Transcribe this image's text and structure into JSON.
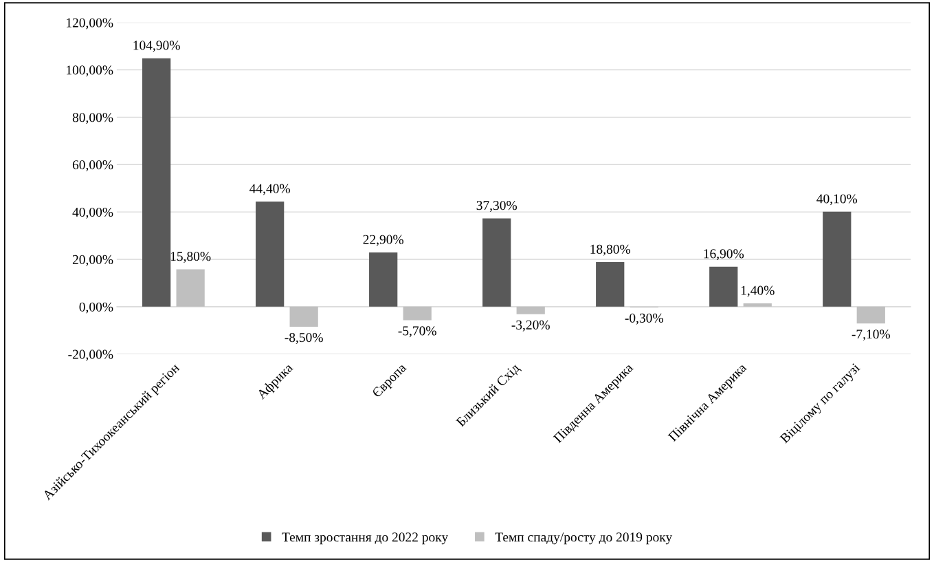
{
  "chart_data": {
    "type": "bar",
    "categories": [
      "Азійсько-Тихоокеанський регіон",
      "Африка",
      "Європа",
      "Близький Схід",
      "Південна Америка",
      "Північна Америка",
      "Віцілому по галузі"
    ],
    "series": [
      {
        "name": "Темп зростання до 2022 року",
        "color": "#595959",
        "values": [
          104.9,
          44.4,
          22.9,
          37.3,
          18.8,
          16.9,
          40.1
        ],
        "value_labels": [
          "104,90%",
          "44,40%",
          "22,90%",
          "37,30%",
          "18,80%",
          "16,90%",
          "40,10%"
        ]
      },
      {
        "name": "Темп спаду/росту до 2019 року",
        "color": "#bfbfbf",
        "values": [
          15.8,
          -8.5,
          -5.7,
          -3.2,
          -0.3,
          1.4,
          -7.1
        ],
        "value_labels": [
          "15,80%",
          "-8,50%",
          "-5,70%",
          "-3,20%",
          "-0,30%",
          "1,40%",
          "-7,10%"
        ]
      }
    ],
    "ylim": [
      -20,
      120
    ],
    "yticks": [
      {
        "value": -20,
        "label": "-20,00%"
      },
      {
        "value": 0,
        "label": "0,00%"
      },
      {
        "value": 20,
        "label": "20,00%"
      },
      {
        "value": 40,
        "label": "40,00%"
      },
      {
        "value": 60,
        "label": "60,00%"
      },
      {
        "value": 80,
        "label": "80,00%"
      },
      {
        "value": 100,
        "label": "100,00%"
      },
      {
        "value": 120,
        "label": "120,00%"
      }
    ],
    "grid": "y",
    "legend": "bottom"
  }
}
